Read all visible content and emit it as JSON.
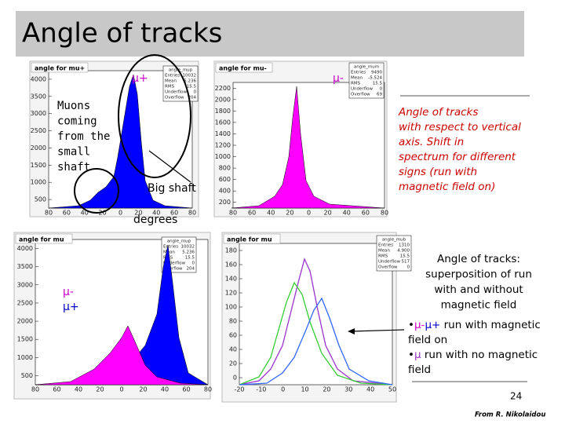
{
  "title": "Angle of tracks",
  "panels": [
    {
      "title": "angle for mu+",
      "stats_title": "angle_mup",
      "stats": [
        [
          "Entries",
          "10032"
        ],
        [
          "Mean",
          "5.236"
        ],
        [
          "RMS",
          "15.5"
        ],
        [
          "Underflow",
          "0"
        ],
        [
          "Overflow",
          "204"
        ]
      ],
      "yticks": [
        "4000",
        "3500",
        "3000",
        "2500",
        "2000",
        "1500",
        "1000",
        "500"
      ],
      "xticks": [
        "80",
        "60",
        "40",
        "20",
        "0",
        "20",
        "40",
        "60",
        "80"
      ]
    },
    {
      "title": "angle for mu-",
      "stats_title": "angle_mum",
      "stats": [
        [
          "Entries",
          "9490"
        ],
        [
          "Mean",
          "-5.524"
        ],
        [
          "RMS",
          "15.5"
        ],
        [
          "Underflow",
          "0"
        ],
        [
          "Overflow",
          "69"
        ]
      ],
      "yticks": [
        "2200",
        "2000",
        "1800",
        "1600",
        "1400",
        "1200",
        "1000",
        "800",
        "600",
        "400",
        "200"
      ],
      "xticks": [
        "80",
        "60",
        "40",
        "20",
        "0",
        "20",
        "40",
        "60",
        "80"
      ]
    },
    {
      "title": "angle for mu",
      "stats_title": "angle_mup",
      "stats": [
        [
          "Entries",
          "10032"
        ],
        [
          "Mean",
          "5.236"
        ],
        [
          "RMS",
          "15.5"
        ],
        [
          "Underflow",
          "0"
        ],
        [
          "Overflow",
          "204"
        ]
      ],
      "yticks": [
        "4000",
        "3500",
        "3000",
        "2500",
        "2000",
        "1500",
        "1000",
        "500"
      ],
      "xticks": [
        "80",
        "60",
        "40",
        "20",
        "0",
        "20",
        "40",
        "60",
        "80"
      ]
    },
    {
      "title": "angle for mu",
      "stats_title": "angle_mub",
      "stats": [
        [
          "Entries",
          "1310"
        ],
        [
          "Mean",
          "4.900"
        ],
        [
          "RMS",
          "15.5"
        ],
        [
          "Underflow",
          "517"
        ],
        [
          "Overflow",
          "0"
        ]
      ],
      "yticks": [
        "180",
        "160",
        "140",
        "120",
        "100",
        "80",
        "60",
        "40",
        "20",
        "0"
      ],
      "xticks": [
        "-20",
        "-10",
        "0",
        "10",
        "20",
        "30",
        "40",
        "50"
      ]
    }
  ],
  "labels": {
    "mu_plus": "μ+",
    "mu_minus": "μ-",
    "small_shaft": [
      "Muons",
      "coming",
      "from the",
      "small",
      "shaft"
    ],
    "big_shaft": "Big shaft",
    "degrees": "degrees",
    "legend_minus": "μ-",
    "legend_plus": "μ+"
  },
  "note1": [
    "Angle of tracks",
    "with respect to vertical",
    "axis. Shift in",
    "spectrum for different",
    "signs (run with",
    "magnetic field on)"
  ],
  "note2": [
    "Angle of tracks:",
    "superposition  of run",
    "with and without",
    "magnetic field"
  ],
  "bullet1": {
    "bullet": "•",
    "minus": "μ-",
    "plus": "μ+",
    "text": " run with magnetic",
    "text2": "field on"
  },
  "bullet2": {
    "bullet": "•",
    "mu": "μ",
    "text": "  run with no magnetic",
    "text2": "field"
  },
  "page_number": "24",
  "credit": "From R. Nikolaidou"
}
